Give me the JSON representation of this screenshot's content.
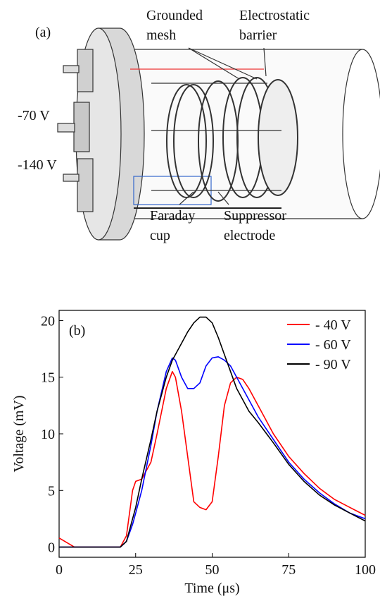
{
  "diagram": {
    "panel_label": "(a)",
    "labels": [
      {
        "lines": [
          "Grounded",
          "mesh"
        ]
      },
      {
        "lines": [
          "Electrostatic",
          "barrier"
        ]
      },
      {
        "lines": [
          "-70 V"
        ]
      },
      {
        "lines": [
          "-140 V"
        ]
      },
      {
        "lines": [
          "Faraday",
          "cup"
        ]
      },
      {
        "lines": [
          "Suppressor",
          "electrode"
        ]
      }
    ]
  },
  "chart_data": {
    "type": "line",
    "panel_label": "(b)",
    "x_label": "Time (μs)",
    "y_label": "Voltage (mV)",
    "xlim": [
      0,
      100
    ],
    "xticks": [
      0,
      25,
      50,
      75,
      100
    ],
    "ylim": [
      -0.9,
      20.9
    ],
    "yticks": [
      0,
      5,
      10,
      15,
      20
    ],
    "legend": "top-right",
    "x": [
      0,
      5,
      10,
      15,
      20,
      22,
      24,
      25,
      27,
      30,
      32,
      35,
      37,
      38,
      40,
      42,
      44,
      46,
      48,
      50,
      52,
      54,
      56,
      58,
      60,
      62,
      65,
      70,
      75,
      80,
      85,
      90,
      95,
      100
    ],
    "series": [
      {
        "name": "- 40 V",
        "color": "#ff0000",
        "values": [
          0.8,
          0,
          0,
          0,
          0,
          1,
          5,
          5.8,
          6,
          7.5,
          10,
          14,
          15.5,
          15,
          12,
          8,
          4,
          3.5,
          3.3,
          4,
          8,
          12.5,
          14.5,
          15,
          14.8,
          14,
          12.5,
          10,
          8,
          6.5,
          5.2,
          4.2,
          3.5,
          2.8
        ]
      },
      {
        "name": "- 60 V",
        "color": "#0000ff",
        "values": [
          0,
          0,
          0,
          0,
          0,
          0.5,
          2,
          3,
          5,
          9,
          12,
          15.5,
          16.7,
          16.5,
          15,
          14,
          14,
          14.5,
          16,
          16.7,
          16.8,
          16.5,
          16,
          15,
          14,
          13,
          11.5,
          9.5,
          7.5,
          6,
          4.8,
          3.8,
          3,
          2.5
        ]
      },
      {
        "name": "- 90 V",
        "color": "#000000",
        "values": [
          0,
          0,
          0,
          0,
          0,
          0.5,
          2.5,
          3.5,
          6,
          9.5,
          12,
          15,
          16.5,
          17,
          18,
          19,
          19.8,
          20.3,
          20.3,
          19.8,
          18.5,
          17,
          15.5,
          14,
          13,
          12,
          11,
          9.2,
          7.3,
          5.8,
          4.6,
          3.7,
          3,
          2.3
        ]
      }
    ]
  }
}
